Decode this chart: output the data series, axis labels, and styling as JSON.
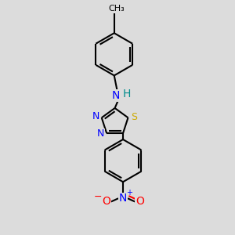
{
  "background_color": "#dcdcdc",
  "bond_lw": 1.5,
  "atom_colors": {
    "N": "#0000ff",
    "S": "#ccaa00",
    "O": "#ff0000",
    "C": "#000000",
    "H": "#008b8b"
  },
  "font_size": 10,
  "small_font": 8
}
